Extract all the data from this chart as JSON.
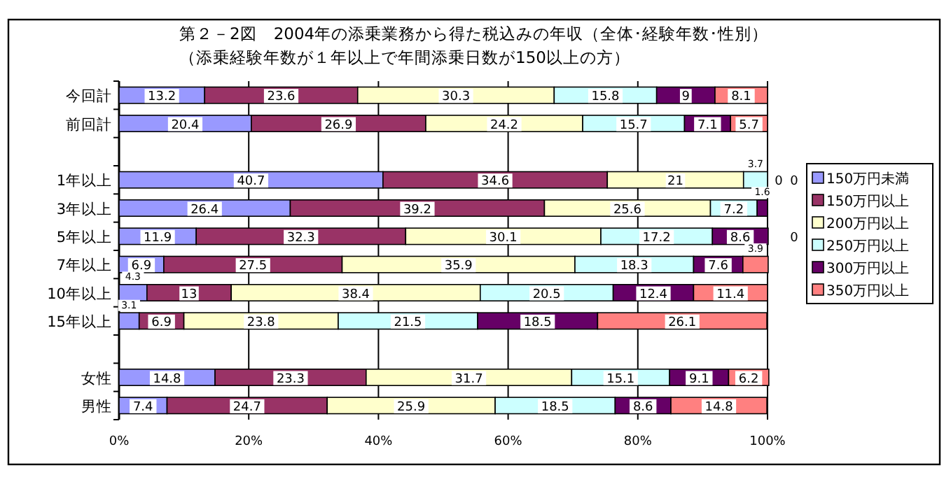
{
  "chart_data": {
    "type": "bar",
    "orientation": "horizontal",
    "stacked": true,
    "title": "第２－2図　2004年の添乗業務から得た税込みの年収（全体･経験年数･性別）",
    "subtitle": "（添乗経験年数が１年以上で年間添乗日数が150以上の方）",
    "categories": [
      "今回計",
      "前回計",
      null,
      "1年以上",
      "3年以上",
      "5年以上",
      "7年以上",
      "10年以上",
      "15年以上",
      null,
      "女性",
      "男性"
    ],
    "series": [
      {
        "name": "150万円未満",
        "color": "#9999ff",
        "values": [
          13.2,
          20.4,
          null,
          40.7,
          26.4,
          11.9,
          6.9,
          4.3,
          3.1,
          null,
          14.8,
          7.4
        ]
      },
      {
        "name": "150万円以上",
        "color": "#993366",
        "values": [
          23.6,
          26.9,
          null,
          34.6,
          39.2,
          32.3,
          27.5,
          13,
          6.9,
          null,
          23.3,
          24.7
        ]
      },
      {
        "name": "200万円以上",
        "color": "#ffffcc",
        "values": [
          30.3,
          24.2,
          null,
          21,
          25.6,
          30.1,
          35.9,
          38.4,
          23.8,
          null,
          31.7,
          25.9
        ]
      },
      {
        "name": "250万円以上",
        "color": "#ccffff",
        "values": [
          15.8,
          15.7,
          null,
          3.7,
          7.2,
          17.2,
          18.3,
          20.5,
          21.5,
          null,
          15.1,
          18.5
        ]
      },
      {
        "name": "300万円以上",
        "color": "#660066",
        "values": [
          9,
          7.1,
          null,
          0,
          1.6,
          8.6,
          7.6,
          12.4,
          18.5,
          null,
          9.1,
          8.6
        ]
      },
      {
        "name": "350万円以上",
        "color": "#ff8080",
        "values": [
          8.1,
          5.7,
          null,
          0,
          0,
          0,
          3.9,
          11.4,
          26.1,
          null,
          6.2,
          14.8
        ],
        "value_labels": [
          "8.1",
          "5.7",
          null,
          "0",
          null,
          "0",
          "3.9",
          "11.4",
          "26.1",
          null,
          "6.2",
          "14.8"
        ]
      }
    ],
    "data_labels": true,
    "xlim": [
      0,
      100
    ],
    "xticks": [
      {
        "value": 0,
        "label": "0%"
      },
      {
        "value": 20,
        "label": "20%"
      },
      {
        "value": 40,
        "label": "40%"
      },
      {
        "value": 60,
        "label": "60%"
      },
      {
        "value": 80,
        "label": "80%"
      },
      {
        "value": 100,
        "label": "100%"
      }
    ],
    "grid": "x",
    "legend": "right"
  }
}
